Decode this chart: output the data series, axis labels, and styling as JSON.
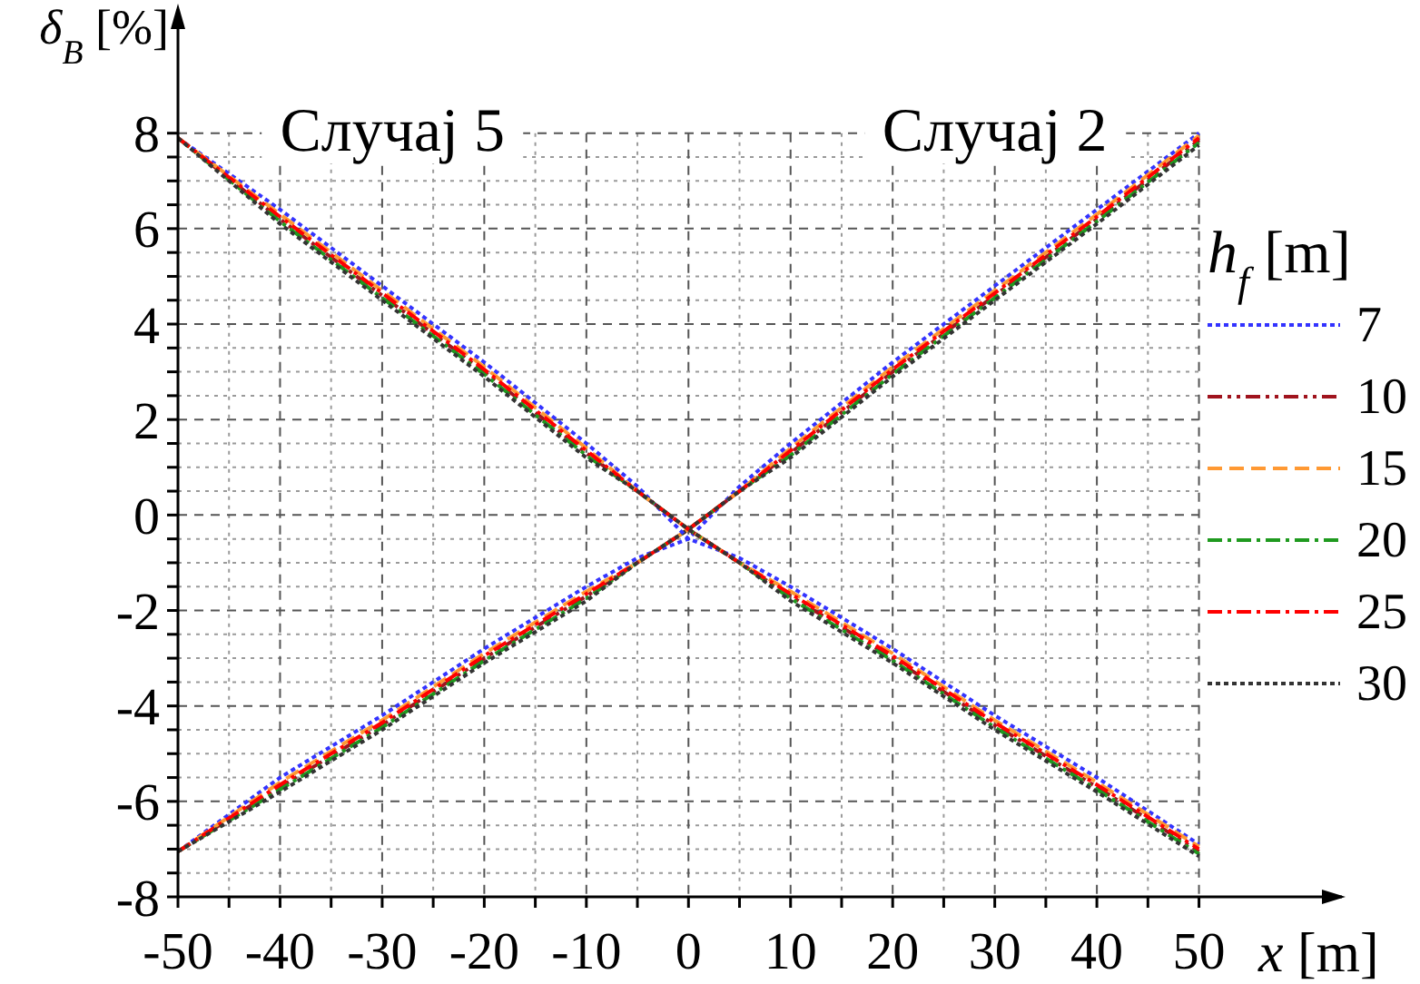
{
  "chart_data": {
    "type": "line",
    "xlabel": "x [m]",
    "ylabel": "δ$_{B}$ [%]",
    "legend_title": "h$_{f}$ [m]",
    "annotations": [
      "Случај 5",
      "Случај 2"
    ],
    "x": [
      -50,
      -40,
      -30,
      -20,
      -10,
      -5,
      0,
      5,
      10,
      20,
      30,
      40,
      50
    ],
    "series": [
      {
        "name": "7",
        "color": "#3333ff",
        "line_style": "dotted",
        "values": [
          -7.05,
          -5.5,
          -4.2,
          -2.8,
          -1.5,
          -0.9,
          -0.5,
          0.6,
          1.5,
          3.2,
          4.8,
          6.4,
          8.0
        ]
      },
      {
        "name": "10",
        "color": "#a0141e",
        "line_style": "dashdotdot",
        "values": [
          -7.05,
          -5.7,
          -4.4,
          -3.0,
          -1.7,
          -1.0,
          -0.3,
          0.5,
          1.3,
          3.0,
          4.6,
          6.2,
          7.85
        ]
      },
      {
        "name": "15",
        "color": "#ff9933",
        "line_style": "dashed",
        "values": [
          -7.05,
          -5.6,
          -4.3,
          -2.9,
          -1.6,
          -1.0,
          -0.3,
          0.5,
          1.4,
          3.1,
          4.7,
          6.3,
          7.95
        ]
      },
      {
        "name": "20",
        "color": "#1f9a1f",
        "line_style": "dashdot",
        "values": [
          -7.05,
          -5.75,
          -4.45,
          -3.05,
          -1.75,
          -1.0,
          -0.3,
          0.5,
          1.25,
          2.95,
          4.55,
          6.15,
          7.8
        ]
      },
      {
        "name": "25",
        "color": "#ff0000",
        "line_style": "dashdot",
        "values": [
          -7.05,
          -5.65,
          -4.35,
          -2.95,
          -1.65,
          -1.0,
          -0.3,
          0.5,
          1.35,
          3.05,
          4.65,
          6.25,
          7.9
        ]
      },
      {
        "name": "30",
        "color": "#333333",
        "line_style": "dotted",
        "values": [
          -7.05,
          -5.8,
          -4.5,
          -3.1,
          -1.8,
          -1.0,
          -0.3,
          0.5,
          1.2,
          2.9,
          4.5,
          6.1,
          7.75
        ]
      },
      {
        "color": "#3333ff",
        "line_style": "dotted",
        "values": [
          7.9,
          6.4,
          4.8,
          3.2,
          1.5,
          0.6,
          -0.5,
          -0.9,
          -1.5,
          -2.8,
          -4.2,
          -5.5,
          -6.9
        ]
      },
      {
        "color": "#a0141e",
        "line_style": "dashdotdot",
        "values": [
          7.9,
          6.2,
          4.6,
          3.0,
          1.3,
          0.5,
          -0.3,
          -1.0,
          -1.7,
          -3.0,
          -4.4,
          -5.7,
          -7.05
        ]
      },
      {
        "color": "#ff9933",
        "line_style": "dashed",
        "values": [
          7.9,
          6.3,
          4.7,
          3.1,
          1.4,
          0.5,
          -0.3,
          -1.0,
          -1.6,
          -2.9,
          -4.3,
          -5.6,
          -6.95
        ]
      },
      {
        "color": "#1f9a1f",
        "line_style": "dashdot",
        "values": [
          7.9,
          6.15,
          4.55,
          2.95,
          1.25,
          0.5,
          -0.3,
          -1.0,
          -1.75,
          -3.05,
          -4.45,
          -5.75,
          -7.1
        ]
      },
      {
        "color": "#ff0000",
        "line_style": "dashdot",
        "values": [
          7.9,
          6.25,
          4.65,
          3.05,
          1.35,
          0.5,
          -0.3,
          -1.0,
          -1.65,
          -2.95,
          -4.35,
          -5.65,
          -7.0
        ]
      },
      {
        "color": "#333333",
        "line_style": "dotted",
        "values": [
          7.9,
          6.1,
          4.5,
          2.9,
          1.2,
          0.5,
          -0.3,
          -1.0,
          -1.8,
          -3.1,
          -4.5,
          -5.8,
          -7.15
        ]
      }
    ],
    "xlim": [
      -50,
      64
    ],
    "ylim": [
      -8,
      10.6
    ],
    "xticks": [
      -50,
      {
        "value": -45,
        "label": null
      },
      -40,
      {
        "value": -35,
        "label": null
      },
      -30,
      {
        "value": -25,
        "label": null
      },
      -20,
      {
        "value": -15,
        "label": null
      },
      -10,
      {
        "value": -5,
        "label": null
      },
      0,
      {
        "value": 5,
        "label": null
      },
      10,
      {
        "value": 15,
        "label": null
      },
      20,
      {
        "value": 25,
        "label": null
      },
      30,
      {
        "value": 35,
        "label": null
      },
      40,
      {
        "value": 45,
        "label": null
      },
      50
    ],
    "yticks": [
      -8,
      {
        "value": -7.5,
        "label": null
      },
      {
        "value": -7,
        "label": null
      },
      {
        "value": -6.5,
        "label": null
      },
      -6,
      {
        "value": -5.5,
        "label": null
      },
      {
        "value": -5,
        "label": null
      },
      {
        "value": -4.5,
        "label": null
      },
      -4,
      {
        "value": -3.5,
        "label": null
      },
      {
        "value": -3,
        "label": null
      },
      {
        "value": -2.5,
        "label": null
      },
      -2,
      {
        "value": -1.5,
        "label": null
      },
      {
        "value": -1,
        "label": null
      },
      {
        "value": -0.5,
        "label": null
      },
      0,
      {
        "value": 0.5,
        "label": null
      },
      {
        "value": 1,
        "label": null
      },
      {
        "value": 1.5,
        "label": null
      },
      2,
      {
        "value": 2.5,
        "label": null
      },
      {
        "value": 3,
        "label": null
      },
      {
        "value": 3.5,
        "label": null
      },
      4,
      {
        "value": 4.5,
        "label": null
      },
      {
        "value": 5,
        "label": null
      },
      {
        "value": 5.5,
        "label": null
      },
      6,
      {
        "value": 6.5,
        "label": null
      },
      {
        "value": 7,
        "label": null
      },
      {
        "value": 7.5,
        "label": null
      },
      8
    ],
    "grid": true,
    "legend": "right"
  }
}
